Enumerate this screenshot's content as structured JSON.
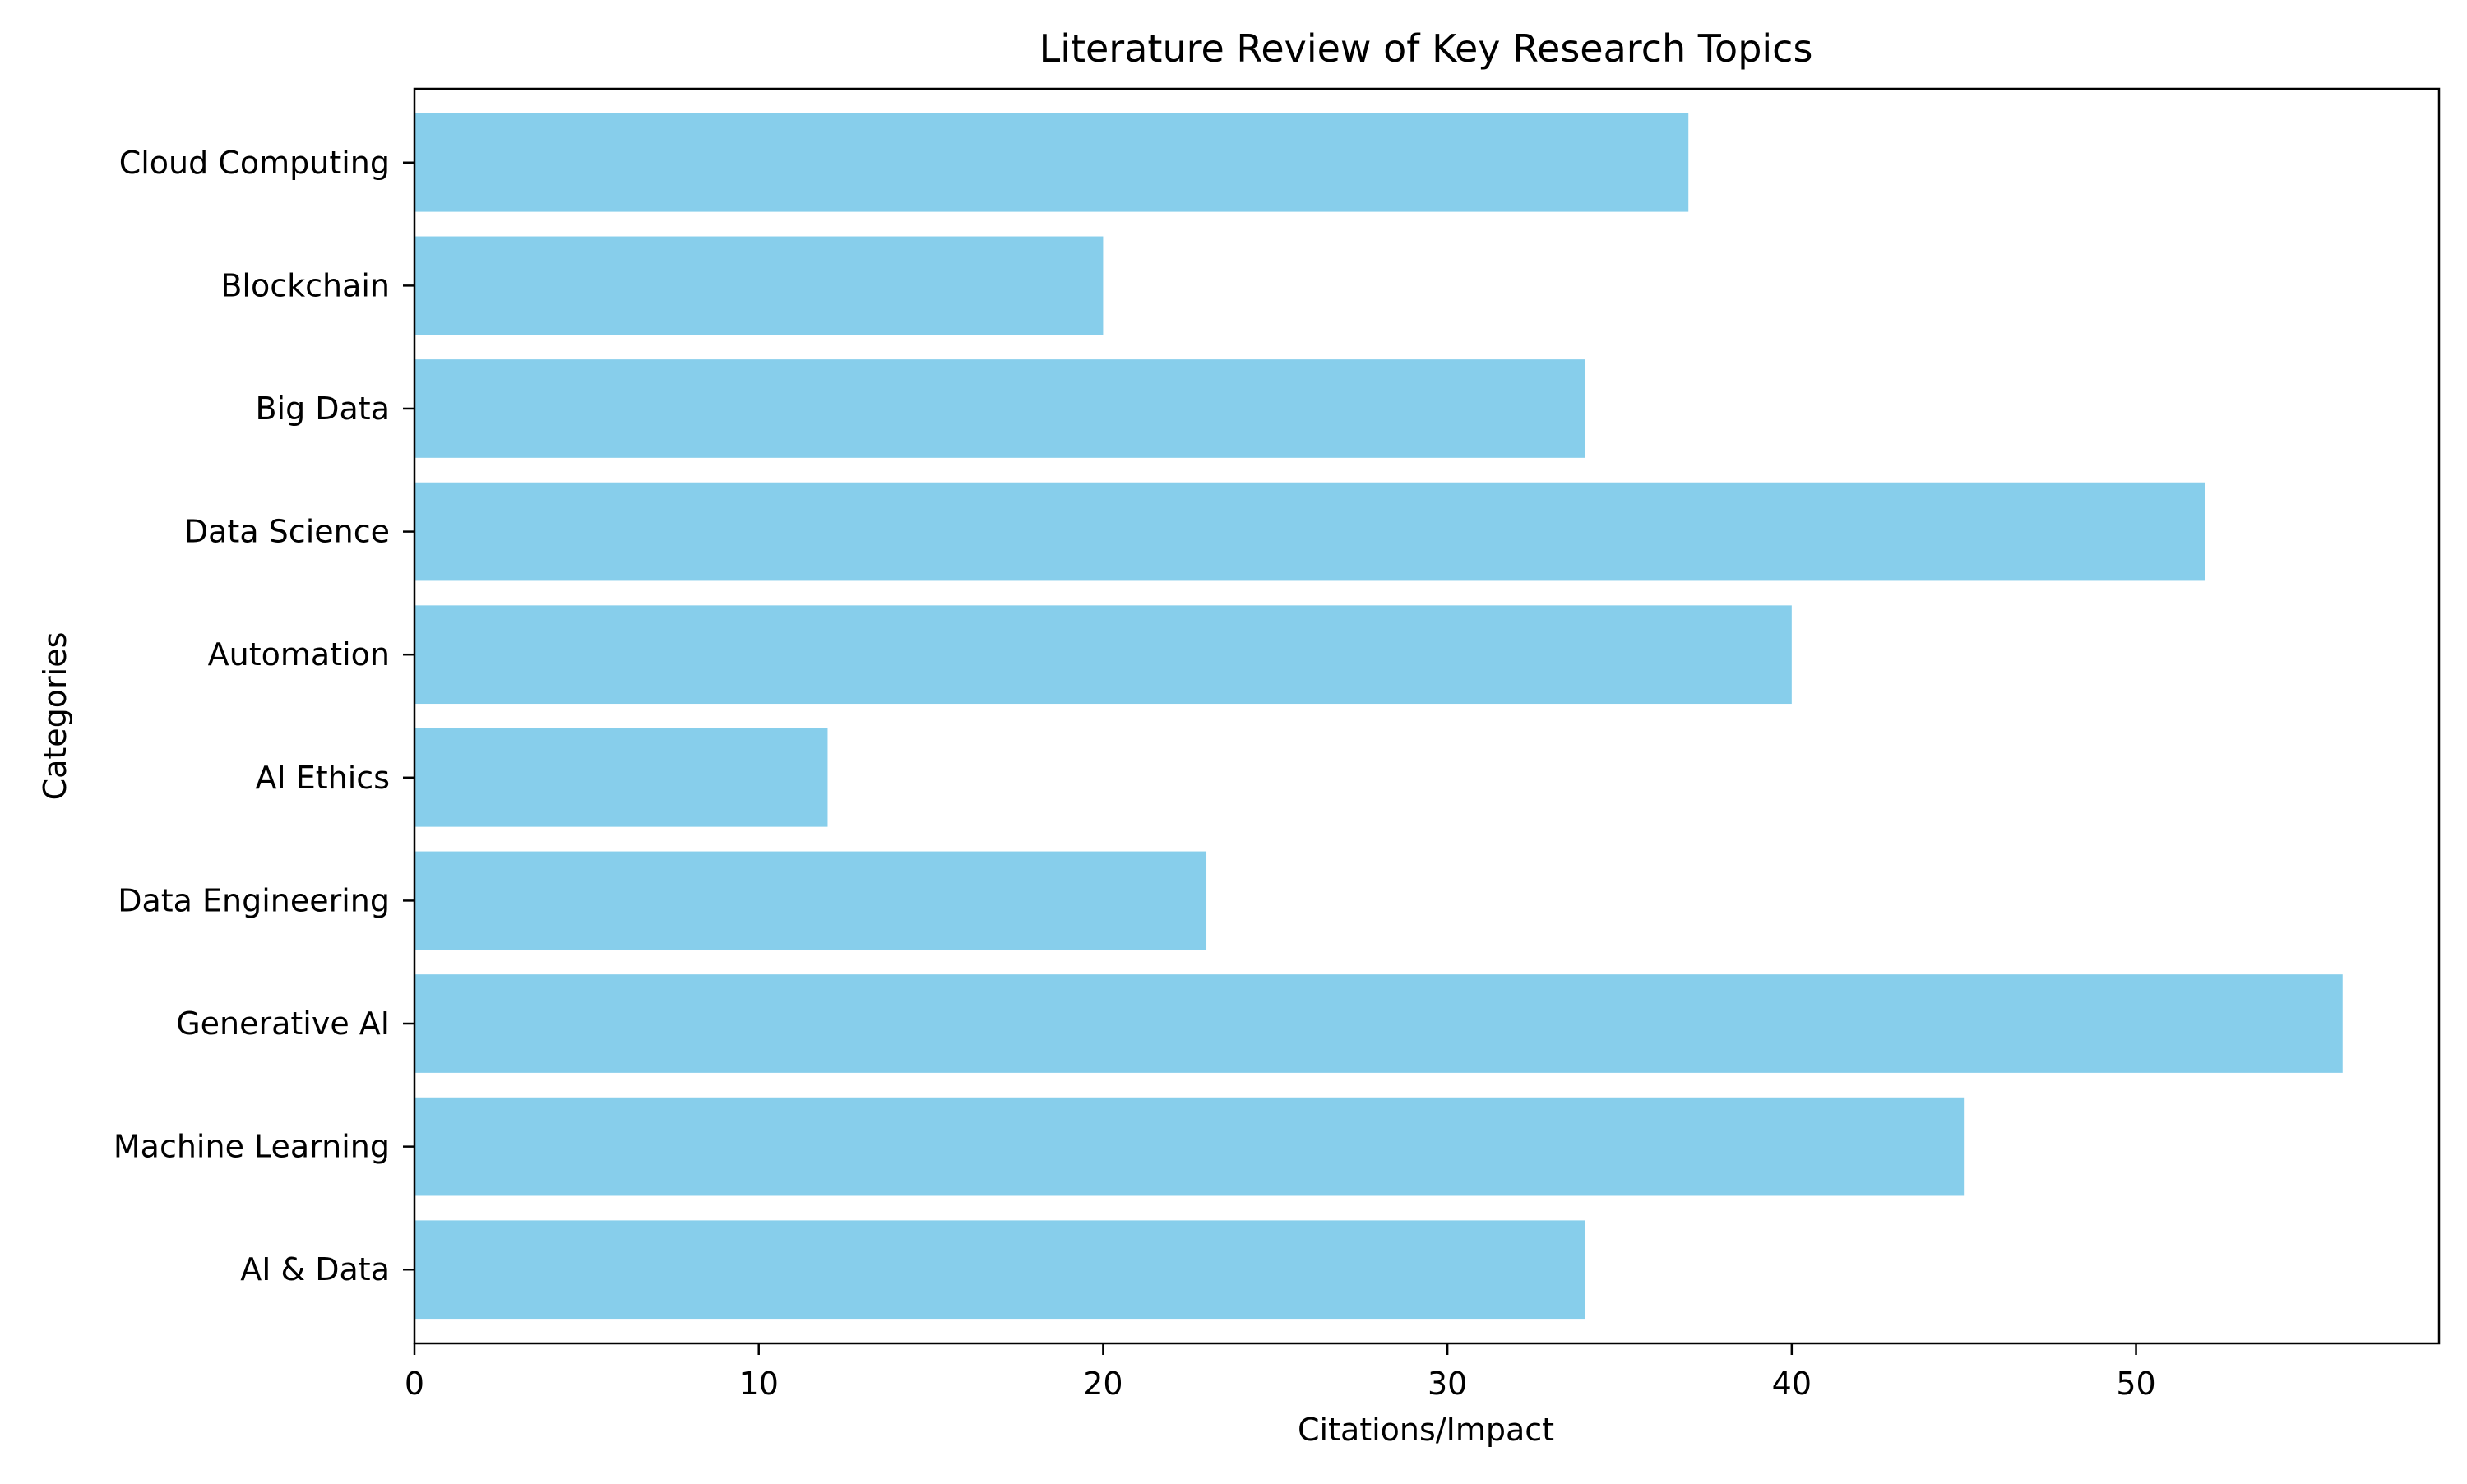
{
  "chart_data": {
    "type": "bar",
    "orientation": "horizontal",
    "title": "Literature Review of Key Research Topics",
    "xlabel": "Citations/Impact",
    "ylabel": "Categories",
    "categories": [
      "AI & Data",
      "Machine Learning",
      "Generative AI",
      "Data Engineering",
      "AI Ethics",
      "Automation",
      "Data Science",
      "Big Data",
      "Blockchain",
      "Cloud Computing"
    ],
    "values": [
      34,
      45,
      56,
      23,
      12,
      40,
      52,
      34,
      20,
      37
    ],
    "xlim": [
      0,
      58.8
    ],
    "xticks": [
      0,
      10,
      20,
      30,
      40,
      50
    ],
    "bar_color": "#87CEEB",
    "grid": false,
    "legend": "none"
  }
}
